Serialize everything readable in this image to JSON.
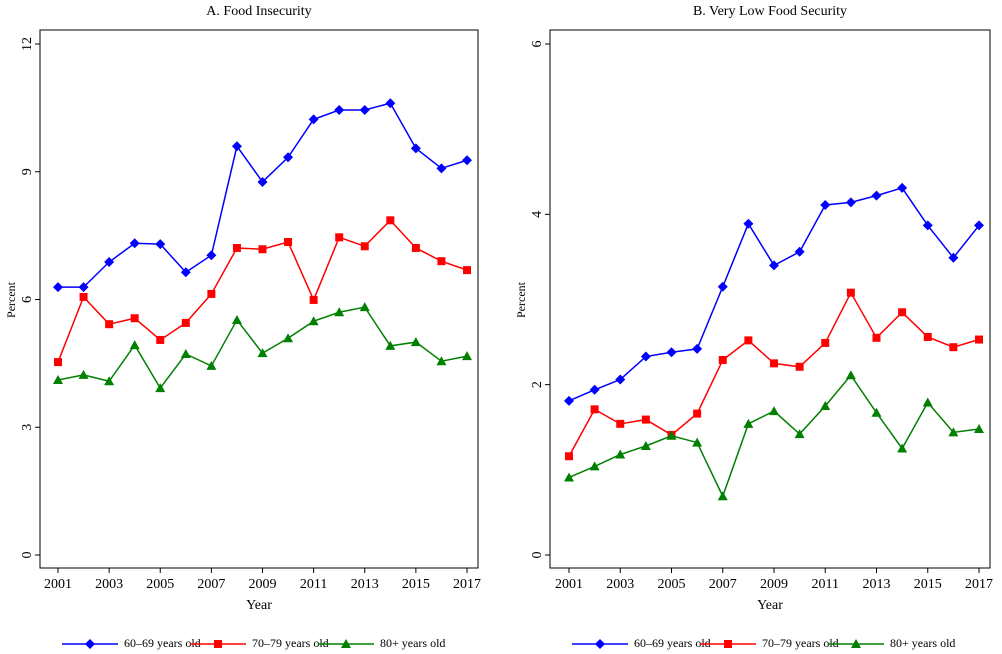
{
  "chart_data": [
    {
      "type": "line",
      "title": "A. Food Insecurity",
      "xlabel": "Year",
      "ylabel": "Percent",
      "x": [
        2001,
        2002,
        2003,
        2004,
        2005,
        2006,
        2007,
        2008,
        2009,
        2010,
        2011,
        2012,
        2013,
        2014,
        2015,
        2016,
        2017
      ],
      "xlim": [
        2001,
        2017
      ],
      "xticks": [
        2001,
        2003,
        2005,
        2007,
        2009,
        2011,
        2013,
        2015,
        2017
      ],
      "ylim": [
        0,
        12
      ],
      "yticks": [
        0,
        3,
        6,
        9,
        12
      ],
      "series": [
        {
          "name": "60–69 years old",
          "color": "#0000ff",
          "marker": "diamond",
          "values": [
            6.29,
            6.29,
            6.88,
            7.32,
            7.3,
            6.64,
            7.04,
            9.6,
            8.76,
            9.34,
            10.23,
            10.45,
            10.45,
            10.61,
            9.55,
            9.08,
            9.27
          ]
        },
        {
          "name": "70–79 years old",
          "color": "#ff0000",
          "marker": "square",
          "values": [
            4.53,
            6.06,
            5.42,
            5.56,
            5.05,
            5.45,
            6.13,
            7.21,
            7.18,
            7.35,
            5.99,
            7.46,
            7.25,
            7.86,
            7.21,
            6.9,
            6.69
          ]
        },
        {
          "name": "80+ years old",
          "color": "#008000",
          "marker": "triangle",
          "values": [
            4.11,
            4.23,
            4.08,
            4.93,
            3.92,
            4.72,
            4.44,
            5.52,
            4.74,
            5.09,
            5.49,
            5.7,
            5.82,
            4.91,
            5.0,
            4.55,
            4.67
          ]
        }
      ]
    },
    {
      "type": "line",
      "title": "B. Very Low Food Security",
      "xlabel": "Year",
      "ylabel": "Percent",
      "x": [
        2001,
        2002,
        2003,
        2004,
        2005,
        2006,
        2007,
        2008,
        2009,
        2010,
        2011,
        2012,
        2013,
        2014,
        2015,
        2016,
        2017
      ],
      "xlim": [
        2001,
        2017
      ],
      "xticks": [
        2001,
        2003,
        2005,
        2007,
        2009,
        2011,
        2013,
        2015,
        2017
      ],
      "ylim": [
        0,
        6
      ],
      "yticks": [
        0,
        2,
        4,
        6
      ],
      "series": [
        {
          "name": "60–69 years old",
          "color": "#0000ff",
          "marker": "diamond",
          "values": [
            1.81,
            1.94,
            2.06,
            2.33,
            2.38,
            2.42,
            3.15,
            3.89,
            3.4,
            3.56,
            4.11,
            4.14,
            4.22,
            4.31,
            3.87,
            3.49,
            3.87
          ]
        },
        {
          "name": "70–79 years old",
          "color": "#ff0000",
          "marker": "square",
          "values": [
            1.16,
            1.71,
            1.54,
            1.59,
            1.41,
            1.66,
            2.29,
            2.52,
            2.25,
            2.21,
            2.49,
            3.08,
            2.55,
            2.85,
            2.56,
            2.44,
            2.53
          ]
        },
        {
          "name": "80+ years old",
          "color": "#008000",
          "marker": "triangle",
          "values": [
            0.91,
            1.04,
            1.18,
            1.28,
            1.4,
            1.32,
            0.69,
            1.54,
            1.69,
            1.42,
            1.75,
            2.11,
            1.67,
            1.25,
            1.79,
            1.44,
            1.48
          ]
        }
      ]
    }
  ]
}
